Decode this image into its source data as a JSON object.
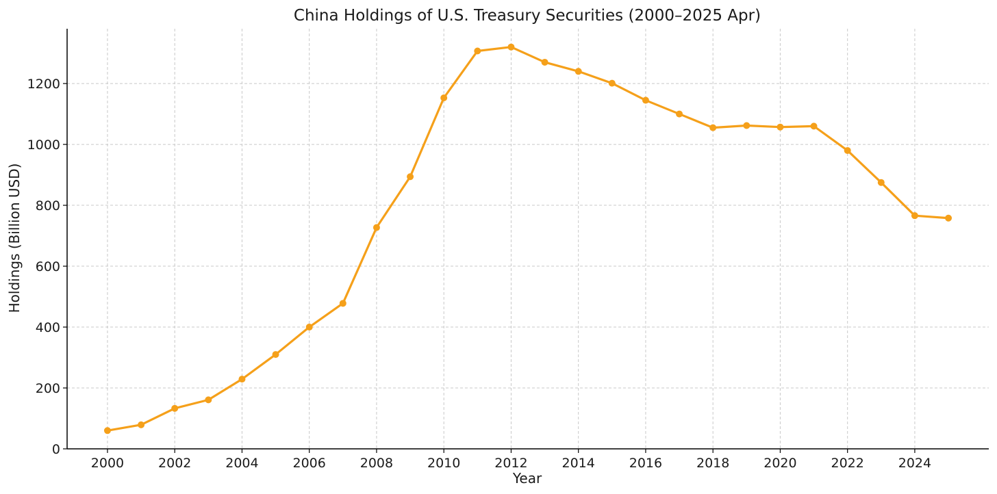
{
  "chart_data": {
    "type": "line",
    "title": "China Holdings of U.S. Treasury Securities (2000–2025 Apr)",
    "xlabel": "Year",
    "ylabel": "Holdings (Billion USD)",
    "xlim": [
      1998.8,
      2026.2
    ],
    "ylim": [
      0,
      1380
    ],
    "xticks": [
      2000,
      2002,
      2004,
      2006,
      2008,
      2010,
      2012,
      2014,
      2016,
      2018,
      2020,
      2022,
      2024
    ],
    "yticks": [
      0,
      200,
      400,
      600,
      800,
      1000,
      1200
    ],
    "grid": true,
    "color": "#f5a01a",
    "series": [
      {
        "x": [
          2000,
          2001,
          2002,
          2003,
          2004,
          2005,
          2006,
          2007,
          2008,
          2009,
          2010,
          2011,
          2012,
          2013,
          2014,
          2015,
          2016,
          2017,
          2018,
          2019,
          2020,
          2021,
          2022,
          2023,
          2024,
          2025
        ],
        "values": [
          60,
          79,
          133,
          161,
          229,
          310,
          400,
          478,
          727,
          894,
          1153,
          1307,
          1320,
          1270,
          1240,
          1201,
          1145,
          1100,
          1055,
          1062,
          1057,
          1060,
          980,
          875,
          766,
          758
        ]
      }
    ]
  }
}
